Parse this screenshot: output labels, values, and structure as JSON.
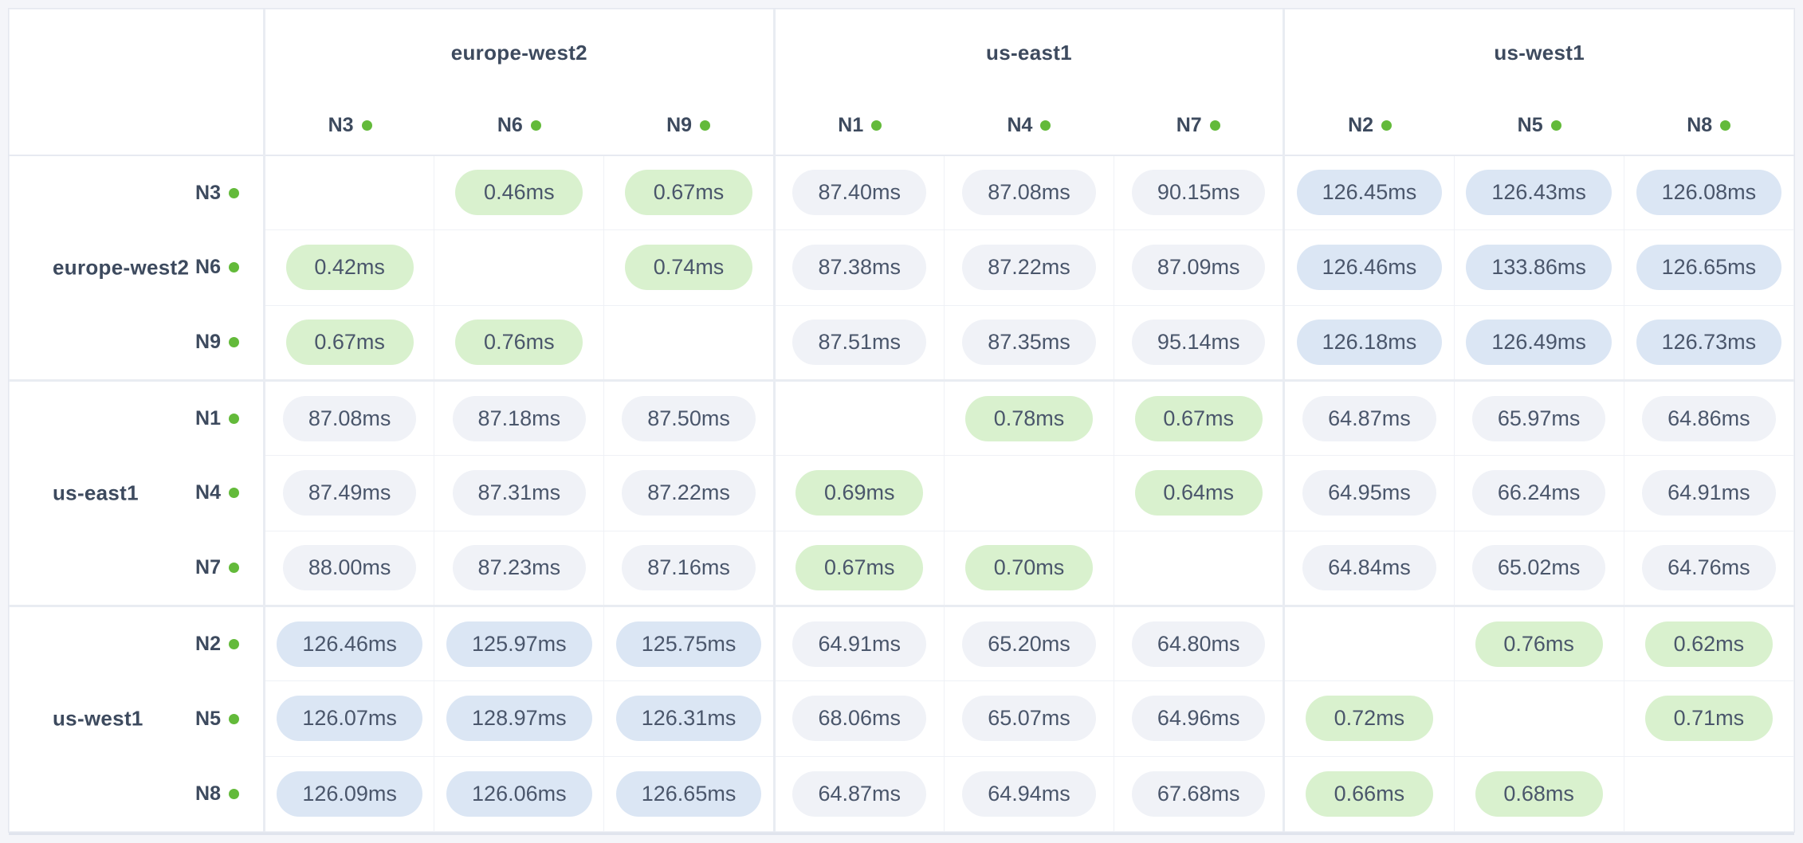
{
  "page": {
    "background": "#f4f5f9",
    "card_background": "#ffffff"
  },
  "matrix": {
    "corner_label": "",
    "unit_suffix": "ms",
    "column_groups": [
      {
        "region": "europe-west2",
        "nodes": [
          "N3",
          "N6",
          "N9"
        ]
      },
      {
        "region": "us-east1",
        "nodes": [
          "N1",
          "N4",
          "N7"
        ]
      },
      {
        "region": "us-west1",
        "nodes": [
          "N2",
          "N5",
          "N8"
        ]
      }
    ],
    "row_groups": [
      {
        "region": "europe-west2",
        "rows": [
          {
            "node": "N3",
            "values": [
              null,
              "0.46ms",
              "0.67ms",
              "87.40ms",
              "87.08ms",
              "90.15ms",
              "126.45ms",
              "126.43ms",
              "126.08ms"
            ]
          },
          {
            "node": "N6",
            "values": [
              "0.42ms",
              null,
              "0.74ms",
              "87.38ms",
              "87.22ms",
              "87.09ms",
              "126.46ms",
              "133.86ms",
              "126.65ms"
            ]
          },
          {
            "node": "N9",
            "values": [
              "0.67ms",
              "0.76ms",
              null,
              "87.51ms",
              "87.35ms",
              "95.14ms",
              "126.18ms",
              "126.49ms",
              "126.73ms"
            ]
          }
        ]
      },
      {
        "region": "us-east1",
        "rows": [
          {
            "node": "N1",
            "values": [
              "87.08ms",
              "87.18ms",
              "87.50ms",
              null,
              "0.78ms",
              "0.67ms",
              "64.87ms",
              "65.97ms",
              "64.86ms"
            ]
          },
          {
            "node": "N4",
            "values": [
              "87.49ms",
              "87.31ms",
              "87.22ms",
              "0.69ms",
              null,
              "0.64ms",
              "64.95ms",
              "66.24ms",
              "64.91ms"
            ]
          },
          {
            "node": "N7",
            "values": [
              "88.00ms",
              "87.23ms",
              "87.16ms",
              "0.67ms",
              "0.70ms",
              null,
              "64.84ms",
              "65.02ms",
              "64.76ms"
            ]
          }
        ]
      },
      {
        "region": "us-west1",
        "rows": [
          {
            "node": "N2",
            "values": [
              "126.46ms",
              "125.97ms",
              "125.75ms",
              "64.91ms",
              "65.20ms",
              "64.80ms",
              null,
              "0.76ms",
              "0.62ms"
            ]
          },
          {
            "node": "N5",
            "values": [
              "126.07ms",
              "128.97ms",
              "126.31ms",
              "68.06ms",
              "65.07ms",
              "64.96ms",
              "0.72ms",
              null,
              "0.71ms"
            ]
          },
          {
            "node": "N8",
            "values": [
              "126.09ms",
              "126.06ms",
              "126.65ms",
              "64.87ms",
              "64.94ms",
              "67.68ms",
              "0.66ms",
              "0.68ms",
              null
            ]
          }
        ]
      }
    ],
    "colors": {
      "pill_low_bg": "#d9f1ce",
      "pill_mid_bg": "#f0f2f7",
      "pill_high_bg": "#dbe6f4",
      "pill_text": "#4a566b",
      "label_text": "#3d4a5e",
      "node_dot": "#63ba3a"
    },
    "tone_thresholds": {
      "low_max_ms": 10,
      "mid_max_ms": 110
    }
  }
}
